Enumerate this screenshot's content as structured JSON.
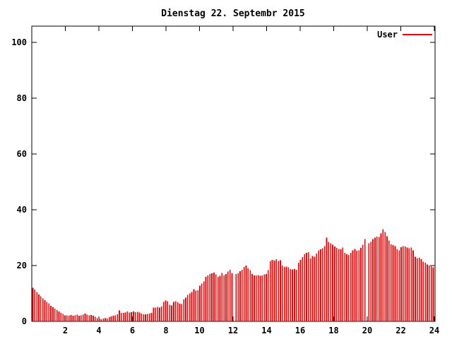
{
  "chart_data": {
    "type": "bar",
    "title": "Dienstag 22. Septembr 2015",
    "legend": {
      "label": "User",
      "position": "top-right-inside",
      "sample_color": "#ff0000"
    },
    "xlabel": "",
    "ylabel": "",
    "xlim": [
      0,
      24
    ],
    "ylim": [
      0,
      105
    ],
    "xticks": [
      2,
      4,
      6,
      8,
      10,
      12,
      14,
      16,
      18,
      20,
      22,
      24
    ],
    "yticks": [
      0,
      20,
      40,
      60,
      80,
      100
    ],
    "grid": "off",
    "bar_color": "#ff0000",
    "axis_color": "#000000",
    "background": "#ffffff",
    "x_hours": {
      "start": 0.06,
      "step": 0.12,
      "count": 200,
      "unit": "hour"
    },
    "gaps_at_hours": [
      12.0,
      20.0
    ],
    "series": [
      {
        "name": "User",
        "color": "#ff0000",
        "values": [
          12.0,
          11.4,
          10.5,
          9.6,
          9.0,
          8.2,
          7.6,
          7.0,
          6.4,
          5.6,
          5.1,
          4.5,
          4.0,
          3.5,
          3.0,
          2.6,
          2.2,
          2.1,
          2.0,
          2.3,
          2.0,
          2.1,
          2.4,
          2.0,
          2.1,
          2.4,
          2.8,
          2.4,
          2.1,
          2.3,
          2.0,
          1.6,
          1.2,
          1.0,
          0.8,
          1.0,
          1.1,
          1.0,
          1.5,
          1.8,
          2.0,
          2.2,
          2.5,
          3.9,
          3.0,
          3.0,
          3.2,
          3.5,
          3.2,
          3.3,
          3.5,
          3.3,
          3.4,
          3.2,
          2.8,
          2.5,
          2.5,
          2.6,
          2.8,
          3.0,
          5.0,
          5.0,
          5.2,
          5.0,
          5.3,
          7.0,
          7.5,
          7.2,
          6.0,
          5.7,
          7.0,
          7.2,
          6.8,
          6.3,
          6.2,
          7.8,
          8.5,
          9.5,
          10.0,
          10.5,
          11.5,
          11.0,
          11.2,
          12.8,
          13.5,
          14.3,
          16.0,
          16.5,
          17.0,
          17.2,
          17.5,
          16.8,
          16.0,
          16.3,
          17.3,
          16.5,
          17.0,
          17.8,
          18.5,
          17.2,
          null,
          17.0,
          17.2,
          18.0,
          18.5,
          19.5,
          20.0,
          19.0,
          18.3,
          17.0,
          16.5,
          16.4,
          16.6,
          16.3,
          16.5,
          16.8,
          17.0,
          18.3,
          21.5,
          22.0,
          21.8,
          22.3,
          21.7,
          21.9,
          20.0,
          19.5,
          19.6,
          19.4,
          18.7,
          18.6,
          18.7,
          18.5,
          21.0,
          22.0,
          23.0,
          24.0,
          24.5,
          24.8,
          22.5,
          23.4,
          23.2,
          24.3,
          25.5,
          25.8,
          26.2,
          27.0,
          30.0,
          28.5,
          28.0,
          27.5,
          26.8,
          26.3,
          26.0,
          25.8,
          26.5,
          24.5,
          24.0,
          23.8,
          24.6,
          25.5,
          26.0,
          25.3,
          25.4,
          26.3,
          27.5,
          29.5,
          null,
          28.0,
          28.5,
          29.5,
          30.0,
          30.4,
          30.2,
          31.5,
          33.0,
          32.0,
          30.5,
          29.0,
          27.6,
          27.3,
          27.0,
          25.8,
          25.5,
          26.6,
          27.0,
          26.8,
          26.4,
          26.2,
          26.4,
          25.4,
          23.2,
          22.6,
          22.8,
          22.3,
          21.4,
          21.0,
          20.4,
          20.0,
          19.8,
          19.4
        ]
      }
    ]
  }
}
